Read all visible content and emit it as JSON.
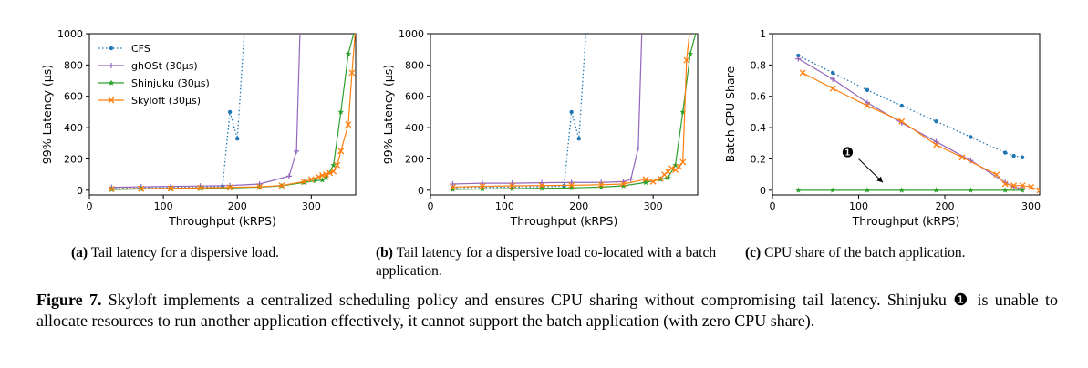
{
  "chart_data": [
    {
      "type": "line",
      "xlabel": "Throughput (kRPS)",
      "ylabel": "99% Latency (μs)",
      "xlim": [
        0,
        360
      ],
      "ylim": [
        -30,
        1000
      ],
      "xticks": [
        0,
        100,
        200,
        300
      ],
      "yticks": [
        0,
        200,
        400,
        600,
        800,
        1000
      ],
      "legend": "top-left",
      "series": [
        {
          "name": "CFS",
          "color": "#1f77b4",
          "style": "dotted",
          "marker": "dot",
          "x": [
            30,
            70,
            110,
            150,
            180,
            190,
            200,
            210
          ],
          "y": [
            10,
            15,
            18,
            20,
            25,
            500,
            330,
            1050
          ]
        },
        {
          "name": "ghOSt (30μs)",
          "color": "#9467bd",
          "style": "solid",
          "marker": "plus",
          "x": [
            30,
            70,
            110,
            150,
            190,
            230,
            270,
            280,
            285
          ],
          "y": [
            18,
            22,
            25,
            27,
            30,
            40,
            90,
            250,
            1050
          ]
        },
        {
          "name": "Shinjuku (30μs)",
          "color": "#2ca02c",
          "style": "solid",
          "marker": "star",
          "x": [
            30,
            70,
            110,
            150,
            190,
            230,
            260,
            290,
            305,
            315,
            320,
            330,
            340,
            350,
            360
          ],
          "y": [
            5,
            8,
            10,
            12,
            15,
            20,
            28,
            50,
            60,
            65,
            80,
            160,
            500,
            870,
            1050
          ]
        },
        {
          "name": "Skyloft (30μs)",
          "color": "#ff7f0e",
          "style": "solid",
          "marker": "x",
          "x": [
            30,
            70,
            110,
            150,
            190,
            230,
            260,
            290,
            300,
            310,
            315,
            320,
            325,
            330,
            335,
            340,
            350,
            355,
            360
          ],
          "y": [
            8,
            10,
            12,
            15,
            18,
            22,
            30,
            55,
            70,
            85,
            95,
            100,
            110,
            120,
            160,
            250,
            420,
            750,
            1050
          ]
        }
      ]
    },
    {
      "type": "line",
      "xlabel": "Throughput (kRPS)",
      "ylabel": "99% Latency (μs)",
      "xlim": [
        0,
        360
      ],
      "ylim": [
        -30,
        1000
      ],
      "xticks": [
        0,
        100,
        200,
        300
      ],
      "yticks": [
        0,
        200,
        400,
        600,
        800,
        1000
      ],
      "series": [
        {
          "name": "CFS",
          "color": "#1f77b4",
          "style": "dotted",
          "marker": "dot",
          "x": [
            30,
            70,
            110,
            150,
            180,
            190,
            200,
            210
          ],
          "y": [
            15,
            18,
            20,
            22,
            28,
            500,
            330,
            1050
          ]
        },
        {
          "name": "ghOSt (30μs)",
          "color": "#9467bd",
          "style": "solid",
          "marker": "plus",
          "x": [
            30,
            70,
            110,
            150,
            190,
            230,
            260,
            270,
            280,
            285
          ],
          "y": [
            40,
            45,
            45,
            48,
            50,
            50,
            55,
            70,
            270,
            1050
          ]
        },
        {
          "name": "Shinjuku (30μs)",
          "color": "#2ca02c",
          "style": "solid",
          "marker": "star",
          "x": [
            30,
            70,
            110,
            150,
            190,
            230,
            260,
            290,
            310,
            320,
            330,
            340,
            350,
            360
          ],
          "y": [
            5,
            8,
            10,
            12,
            15,
            20,
            28,
            50,
            70,
            80,
            160,
            500,
            870,
            1050
          ]
        },
        {
          "name": "Skyloft (30μs)",
          "color": "#ff7f0e",
          "style": "solid",
          "marker": "x",
          "x": [
            30,
            70,
            110,
            150,
            190,
            230,
            260,
            290,
            300,
            310,
            315,
            320,
            325,
            330,
            335,
            340,
            345,
            350
          ],
          "y": [
            20,
            25,
            28,
            30,
            32,
            35,
            40,
            70,
            55,
            75,
            100,
            120,
            140,
            130,
            150,
            180,
            830,
            1050
          ]
        }
      ]
    },
    {
      "type": "line",
      "xlabel": "Throughput (kRPS)",
      "ylabel": "Batch CPU Share",
      "xlim": [
        0,
        310
      ],
      "ylim": [
        -0.03,
        1.0
      ],
      "xticks": [
        0,
        100,
        200,
        300
      ],
      "yticks": [
        0,
        0.2,
        0.4,
        0.6,
        0.8,
        1
      ],
      "ytick_labels": [
        "0",
        "0.2",
        "0.4",
        "0.6",
        "0.8",
        "1"
      ],
      "annotations": [
        {
          "text": "❶",
          "arrow_from": [
            100,
            0.2
          ],
          "arrow_to": [
            128,
            0.05
          ]
        }
      ],
      "series": [
        {
          "name": "CFS",
          "color": "#1f77b4",
          "style": "dotted",
          "marker": "dot",
          "x": [
            30,
            70,
            110,
            150,
            190,
            230,
            270,
            280,
            290
          ],
          "y": [
            0.86,
            0.75,
            0.64,
            0.54,
            0.44,
            0.34,
            0.24,
            0.22,
            0.21
          ]
        },
        {
          "name": "ghOSt (30μs)",
          "color": "#9467bd",
          "style": "solid",
          "marker": "plus",
          "x": [
            30,
            70,
            110,
            150,
            190,
            230,
            270,
            280,
            290
          ],
          "y": [
            0.84,
            0.71,
            0.56,
            0.43,
            0.31,
            0.19,
            0.05,
            0.02,
            0.01
          ]
        },
        {
          "name": "Shinjuku (30μs)",
          "color": "#2ca02c",
          "style": "solid",
          "marker": "star",
          "x": [
            30,
            70,
            110,
            150,
            190,
            230,
            270,
            290
          ],
          "y": [
            0,
            0,
            0,
            0,
            0,
            0,
            0,
            0
          ]
        },
        {
          "name": "Skyloft (30μs)",
          "color": "#ff7f0e",
          "style": "solid",
          "marker": "x",
          "x": [
            35,
            70,
            110,
            150,
            190,
            220,
            260,
            270,
            280,
            290,
            300,
            310
          ],
          "y": [
            0.75,
            0.65,
            0.54,
            0.44,
            0.29,
            0.21,
            0.1,
            0.04,
            0.03,
            0.03,
            0.02,
            0.0
          ]
        }
      ]
    }
  ],
  "captions": {
    "a": {
      "label": "(a)",
      "text": "Tail latency for a dispersive load."
    },
    "b": {
      "label": "(b)",
      "text": "Tail latency for a dispersive load co-located with a batch application."
    },
    "c": {
      "label": "(c)",
      "text": "CPU share of the batch application."
    }
  },
  "figure_caption": {
    "label": "Figure 7.",
    "text_before": "Skyloft implements a centralized scheduling policy and ensures CPU sharing without compromising tail latency. Shinjuku ",
    "marker": "❶",
    "text_after": " is unable to allocate resources to run another application effectively, it cannot support the batch application (with zero CPU share)."
  }
}
